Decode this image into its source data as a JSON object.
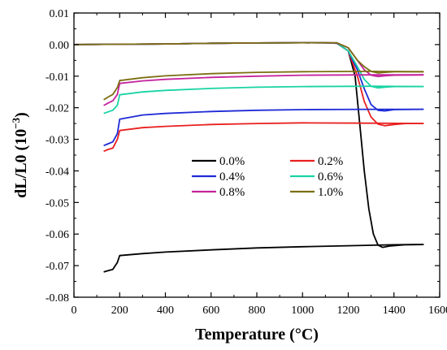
{
  "chart_data": {
    "type": "line",
    "title": "",
    "xlabel": "Temperature (°C)",
    "ylabel_main": "dL/L0 (10",
    "ylabel_exp": "−3",
    "ylabel_close": ")",
    "xlim": [
      0,
      1600
    ],
    "ylim": [
      -0.08,
      0.01
    ],
    "x_ticks": [
      0,
      200,
      400,
      600,
      800,
      1000,
      1200,
      1400,
      1600
    ],
    "y_ticks": [
      0.01,
      0.0,
      -0.01,
      -0.02,
      -0.03,
      -0.04,
      -0.05,
      -0.06,
      -0.07,
      -0.08
    ],
    "y_tick_labels": [
      "0.01",
      "0.00",
      "-0.01",
      "-0.02",
      "-0.03",
      "-0.04",
      "-0.05",
      "-0.06",
      "-0.07",
      "-0.08"
    ],
    "legend_position": "center-right",
    "series": [
      {
        "name": "0.0%",
        "color": "#000000",
        "heating": [
          [
            0,
            0
          ],
          [
            200,
            0.0001
          ],
          [
            400,
            0.0002
          ],
          [
            600,
            0.0004
          ],
          [
            800,
            0.0005
          ],
          [
            1000,
            0.0006
          ],
          [
            1100,
            0.0006
          ],
          [
            1150,
            0.0004
          ],
          [
            1200,
            -0.002
          ],
          [
            1230,
            -0.01
          ],
          [
            1250,
            -0.025
          ],
          [
            1270,
            -0.04
          ],
          [
            1290,
            -0.052
          ],
          [
            1310,
            -0.06
          ],
          [
            1330,
            -0.0635
          ],
          [
            1350,
            -0.0642
          ],
          [
            1380,
            -0.0638
          ],
          [
            1450,
            -0.0634
          ],
          [
            1530,
            -0.0633
          ]
        ],
        "cooling": [
          [
            1530,
            -0.0633
          ],
          [
            1400,
            -0.0634
          ],
          [
            1200,
            -0.0637
          ],
          [
            1000,
            -0.064
          ],
          [
            800,
            -0.0644
          ],
          [
            600,
            -0.065
          ],
          [
            400,
            -0.0657
          ],
          [
            300,
            -0.0662
          ],
          [
            200,
            -0.0668
          ],
          [
            190,
            -0.069
          ],
          [
            170,
            -0.0712
          ],
          [
            150,
            -0.0716
          ],
          [
            130,
            -0.072
          ]
        ]
      },
      {
        "name": "0.2%",
        "color": "#e8201f",
        "heating": [
          [
            0,
            0
          ],
          [
            200,
            0.0001
          ],
          [
            400,
            0.0002
          ],
          [
            600,
            0.0004
          ],
          [
            800,
            0.0005
          ],
          [
            1000,
            0.0006
          ],
          [
            1150,
            0.0005
          ],
          [
            1200,
            -0.002
          ],
          [
            1240,
            -0.01
          ],
          [
            1270,
            -0.018
          ],
          [
            1300,
            -0.023
          ],
          [
            1330,
            -0.0252
          ],
          [
            1360,
            -0.0257
          ],
          [
            1400,
            -0.0253
          ],
          [
            1450,
            -0.025
          ],
          [
            1530,
            -0.025
          ]
        ],
        "cooling": [
          [
            1530,
            -0.025
          ],
          [
            1300,
            -0.0249
          ],
          [
            1000,
            -0.0248
          ],
          [
            800,
            -0.025
          ],
          [
            600,
            -0.0253
          ],
          [
            400,
            -0.0259
          ],
          [
            300,
            -0.0263
          ],
          [
            200,
            -0.0272
          ],
          [
            190,
            -0.03
          ],
          [
            170,
            -0.0328
          ],
          [
            150,
            -0.0332
          ],
          [
            130,
            -0.0338
          ]
        ]
      },
      {
        "name": "0.4%",
        "color": "#1f2bd6",
        "heating": [
          [
            0,
            0
          ],
          [
            200,
            0.0001
          ],
          [
            400,
            0.0002
          ],
          [
            600,
            0.0004
          ],
          [
            800,
            0.0005
          ],
          [
            1000,
            0.0006
          ],
          [
            1150,
            0.0005
          ],
          [
            1200,
            -0.002
          ],
          [
            1240,
            -0.008
          ],
          [
            1270,
            -0.014
          ],
          [
            1300,
            -0.019
          ],
          [
            1330,
            -0.0208
          ],
          [
            1360,
            -0.021
          ],
          [
            1400,
            -0.0206
          ],
          [
            1530,
            -0.0205
          ]
        ],
        "cooling": [
          [
            1530,
            -0.0205
          ],
          [
            1300,
            -0.0205
          ],
          [
            1000,
            -0.0206
          ],
          [
            800,
            -0.0208
          ],
          [
            600,
            -0.0212
          ],
          [
            400,
            -0.0218
          ],
          [
            300,
            -0.0223
          ],
          [
            200,
            -0.0236
          ],
          [
            190,
            -0.0282
          ],
          [
            170,
            -0.0308
          ],
          [
            150,
            -0.0314
          ],
          [
            130,
            -0.032
          ]
        ]
      },
      {
        "name": "0.6%",
        "color": "#19d3a4",
        "heating": [
          [
            0,
            0
          ],
          [
            200,
            0.0001
          ],
          [
            400,
            0.0002
          ],
          [
            600,
            0.0004
          ],
          [
            800,
            0.0005
          ],
          [
            1000,
            0.0006
          ],
          [
            1150,
            0.0005
          ],
          [
            1200,
            -0.002
          ],
          [
            1240,
            -0.007
          ],
          [
            1270,
            -0.011
          ],
          [
            1300,
            -0.0132
          ],
          [
            1330,
            -0.0137
          ],
          [
            1360,
            -0.0135
          ],
          [
            1400,
            -0.0133
          ],
          [
            1530,
            -0.0133
          ]
        ],
        "cooling": [
          [
            1530,
            -0.0133
          ],
          [
            1300,
            -0.0132
          ],
          [
            1000,
            -0.0133
          ],
          [
            800,
            -0.0135
          ],
          [
            600,
            -0.0139
          ],
          [
            400,
            -0.0145
          ],
          [
            300,
            -0.015
          ],
          [
            200,
            -0.0159
          ],
          [
            190,
            -0.0192
          ],
          [
            170,
            -0.0208
          ],
          [
            150,
            -0.0213
          ],
          [
            130,
            -0.0218
          ]
        ]
      },
      {
        "name": "0.8%",
        "color": "#c4239c",
        "heating": [
          [
            0,
            0
          ],
          [
            200,
            0.0001
          ],
          [
            400,
            0.0002
          ],
          [
            600,
            0.0004
          ],
          [
            800,
            0.0005
          ],
          [
            1000,
            0.0006
          ],
          [
            1150,
            0.0005
          ],
          [
            1200,
            -0.001
          ],
          [
            1240,
            -0.005
          ],
          [
            1270,
            -0.008
          ],
          [
            1300,
            -0.0097
          ],
          [
            1330,
            -0.0101
          ],
          [
            1360,
            -0.0099
          ],
          [
            1400,
            -0.0097
          ],
          [
            1530,
            -0.0096
          ]
        ],
        "cooling": [
          [
            1530,
            -0.0096
          ],
          [
            1300,
            -0.0096
          ],
          [
            1000,
            -0.0097
          ],
          [
            800,
            -0.01
          ],
          [
            600,
            -0.0104
          ],
          [
            400,
            -0.011
          ],
          [
            300,
            -0.0115
          ],
          [
            200,
            -0.0123
          ],
          [
            190,
            -0.0158
          ],
          [
            170,
            -0.0178
          ],
          [
            150,
            -0.0185
          ],
          [
            130,
            -0.0193
          ]
        ]
      },
      {
        "name": "1.0%",
        "color": "#7b6e12",
        "heating": [
          [
            0,
            0
          ],
          [
            200,
            0.0001
          ],
          [
            400,
            0.0002
          ],
          [
            600,
            0.0004
          ],
          [
            800,
            0.0005
          ],
          [
            1000,
            0.0006
          ],
          [
            1150,
            0.0006
          ],
          [
            1200,
            -0.001
          ],
          [
            1240,
            -0.005
          ],
          [
            1270,
            -0.007
          ],
          [
            1300,
            -0.0085
          ],
          [
            1330,
            -0.009
          ],
          [
            1360,
            -0.0088
          ],
          [
            1400,
            -0.0086
          ],
          [
            1530,
            -0.0086
          ]
        ],
        "cooling": [
          [
            1530,
            -0.0086
          ],
          [
            1300,
            -0.0085
          ],
          [
            1000,
            -0.0086
          ],
          [
            800,
            -0.0088
          ],
          [
            600,
            -0.0092
          ],
          [
            400,
            -0.0099
          ],
          [
            300,
            -0.0105
          ],
          [
            200,
            -0.0114
          ],
          [
            190,
            -0.0136
          ],
          [
            170,
            -0.0158
          ],
          [
            150,
            -0.0166
          ],
          [
            130,
            -0.0175
          ]
        ]
      }
    ]
  }
}
